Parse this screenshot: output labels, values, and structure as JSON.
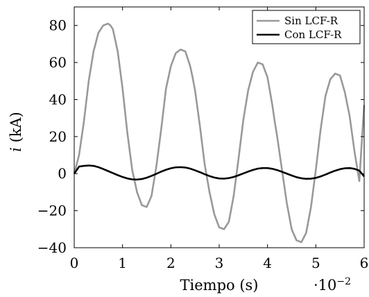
{
  "chart_data": {
    "type": "line",
    "xlabel": "Tiempo (s)",
    "ylabel_var": "i",
    "ylabel_unit": " (kA)",
    "x_multiplier_base": "·10",
    "x_multiplier_exp": "−2",
    "xlim": [
      0,
      6
    ],
    "ylim": [
      -40,
      90
    ],
    "xticks": [
      0,
      1,
      2,
      3,
      4,
      5,
      6
    ],
    "yticks": [
      -40,
      -20,
      0,
      20,
      40,
      60,
      80
    ],
    "xtick_labels": [
      "0",
      "1",
      "2",
      "3",
      "4",
      "5",
      "6"
    ],
    "ytick_labels": [
      "−40",
      "−20",
      "0",
      "20",
      "40",
      "60",
      "80"
    ],
    "legend_position": "top-right",
    "grid": false,
    "series": [
      {
        "name": "Sin LCF-R",
        "color": "#999999",
        "x": [
          0,
          0.1,
          0.2,
          0.3,
          0.4,
          0.5,
          0.6,
          0.7,
          0.75,
          0.8,
          0.9,
          1.0,
          1.1,
          1.2,
          1.3,
          1.4,
          1.5,
          1.6,
          1.7,
          1.8,
          1.9,
          2.0,
          2.1,
          2.2,
          2.3,
          2.4,
          2.45,
          2.5,
          2.6,
          2.7,
          2.8,
          2.9,
          3.0,
          3.1,
          3.2,
          3.3,
          3.4,
          3.5,
          3.6,
          3.7,
          3.8,
          3.9,
          4.0,
          4.1,
          4.15,
          4.2,
          4.3,
          4.4,
          4.5,
          4.6,
          4.7,
          4.8,
          4.9,
          5.0,
          5.1,
          5.2,
          5.3,
          5.4,
          5.5,
          5.6,
          5.7,
          5.8,
          5.9,
          6.0
        ],
        "values": [
          0,
          10,
          28,
          50,
          66,
          76,
          80,
          81,
          80,
          78,
          66,
          46,
          22,
          2,
          -10,
          -17,
          -18,
          -12,
          4,
          24,
          46,
          58,
          65,
          67,
          66,
          58,
          52,
          45,
          26,
          5,
          -10,
          -22,
          -29,
          -30,
          -26,
          -12,
          8,
          29,
          45,
          55,
          60,
          59,
          52,
          37,
          28,
          20,
          2,
          -16,
          -30,
          -36,
          -37,
          -32,
          -18,
          2,
          24,
          42,
          51,
          54,
          53,
          44,
          31,
          12,
          -4,
          37
        ]
      },
      {
        "name": "Con LCF-R",
        "color": "#000000",
        "x": [
          0,
          0.1,
          0.2,
          0.3,
          0.4,
          0.5,
          0.6,
          0.7,
          0.8,
          0.9,
          1.0,
          1.1,
          1.2,
          1.3,
          1.4,
          1.5,
          1.6,
          1.7,
          1.8,
          1.9,
          2.0,
          2.1,
          2.2,
          2.3,
          2.4,
          2.5,
          2.6,
          2.7,
          2.8,
          2.9,
          3.0,
          3.1,
          3.2,
          3.3,
          3.4,
          3.5,
          3.6,
          3.7,
          3.8,
          3.9,
          4.0,
          4.1,
          4.2,
          4.3,
          4.4,
          4.5,
          4.6,
          4.7,
          4.8,
          4.9,
          5.0,
          5.1,
          5.2,
          5.3,
          5.4,
          5.5,
          5.6,
          5.7,
          5.8,
          5.9,
          6.0
        ],
        "values": [
          0,
          3.8,
          4.2,
          4.4,
          4.2,
          3.5,
          2.5,
          1.4,
          0.3,
          -0.8,
          -1.8,
          -2.6,
          -3.1,
          -3.2,
          -2.9,
          -2.2,
          -1.2,
          -0.1,
          1.1,
          2.1,
          2.9,
          3.4,
          3.5,
          3.3,
          2.7,
          1.8,
          0.8,
          -0.3,
          -1.3,
          -2.1,
          -2.6,
          -2.7,
          -2.4,
          -1.8,
          -0.9,
          0.1,
          1.1,
          2.0,
          2.7,
          3.0,
          3.0,
          2.6,
          1.9,
          1.0,
          0.0,
          -1.0,
          -1.9,
          -2.5,
          -2.8,
          -2.7,
          -2.3,
          -1.5,
          -0.5,
          0.6,
          1.6,
          2.4,
          2.9,
          3.0,
          2.6,
          1.6,
          -1.5
        ]
      }
    ]
  }
}
